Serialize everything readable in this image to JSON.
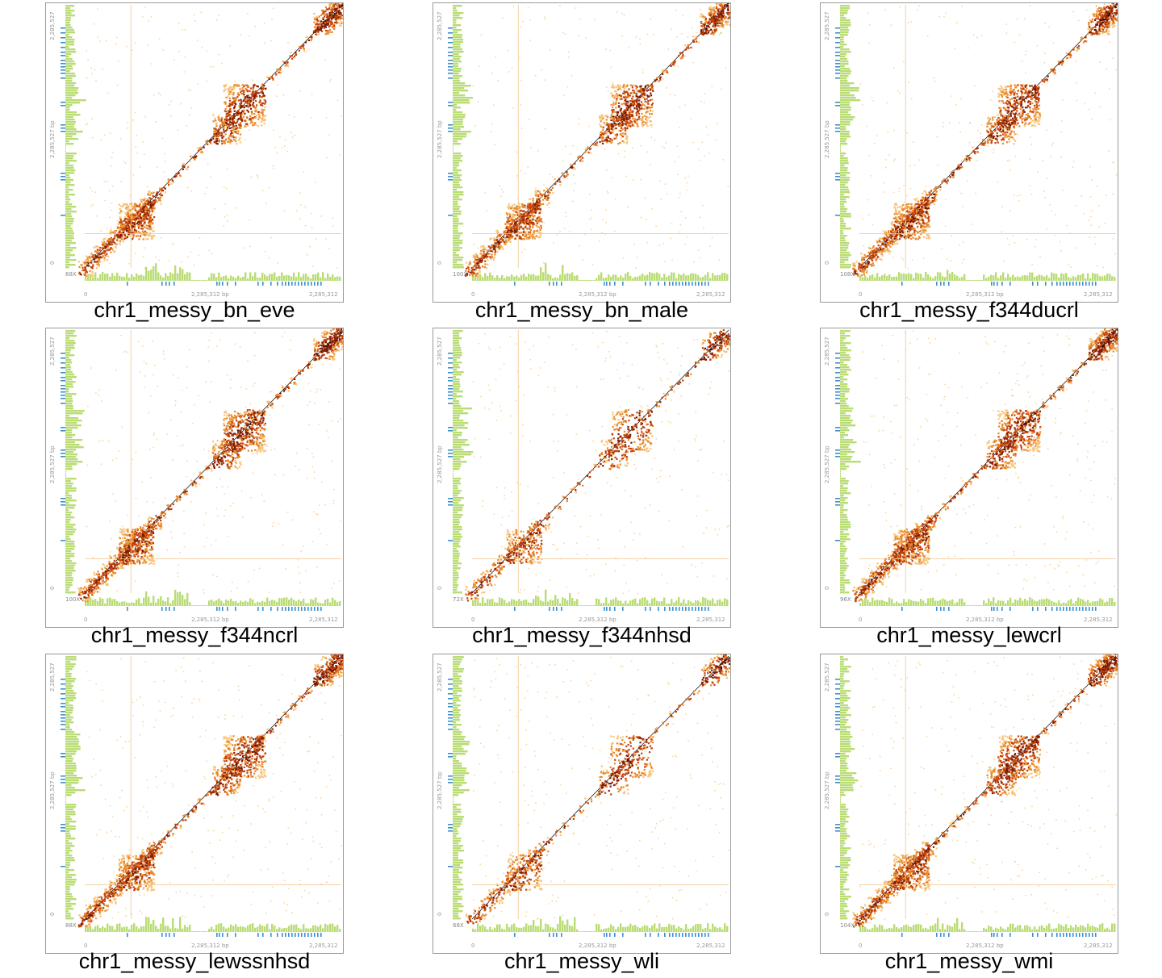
{
  "colors": {
    "coverage": "#b9dc74",
    "annotation": "#3f8fcf",
    "heat_dark": "#3a0a00",
    "heat_mid": "#c2410c",
    "heat_light": "#f8c47a",
    "frame": "#9a9a9a"
  },
  "axis": {
    "x_start": "0",
    "x_mid": "2,285,312 bp",
    "x_end": "2,285,312",
    "y_start": "0",
    "y_mid": "2,285,527 bp",
    "y_end": "2,285,527"
  },
  "panels": [
    {
      "title": "chr1_messy_bn_eve",
      "coverage_label": "68X"
    },
    {
      "title": "chr1_messy_bn_male",
      "coverage_label": "100X"
    },
    {
      "title": "chr1_messy_f344ducrl",
      "coverage_label": "108X"
    },
    {
      "title": "chr1_messy_f344ncrl",
      "coverage_label": "100X"
    },
    {
      "title": "chr1_messy_f344nhsd",
      "coverage_label": "72X"
    },
    {
      "title": "chr1_messy_lewcrl",
      "coverage_label": "96X"
    },
    {
      "title": "chr1_messy_lewssnhsd",
      "coverage_label": "88X"
    },
    {
      "title": "chr1_messy_wli",
      "coverage_label": "68X"
    },
    {
      "title": "chr1_messy_wmi",
      "coverage_label": "104X"
    }
  ]
}
